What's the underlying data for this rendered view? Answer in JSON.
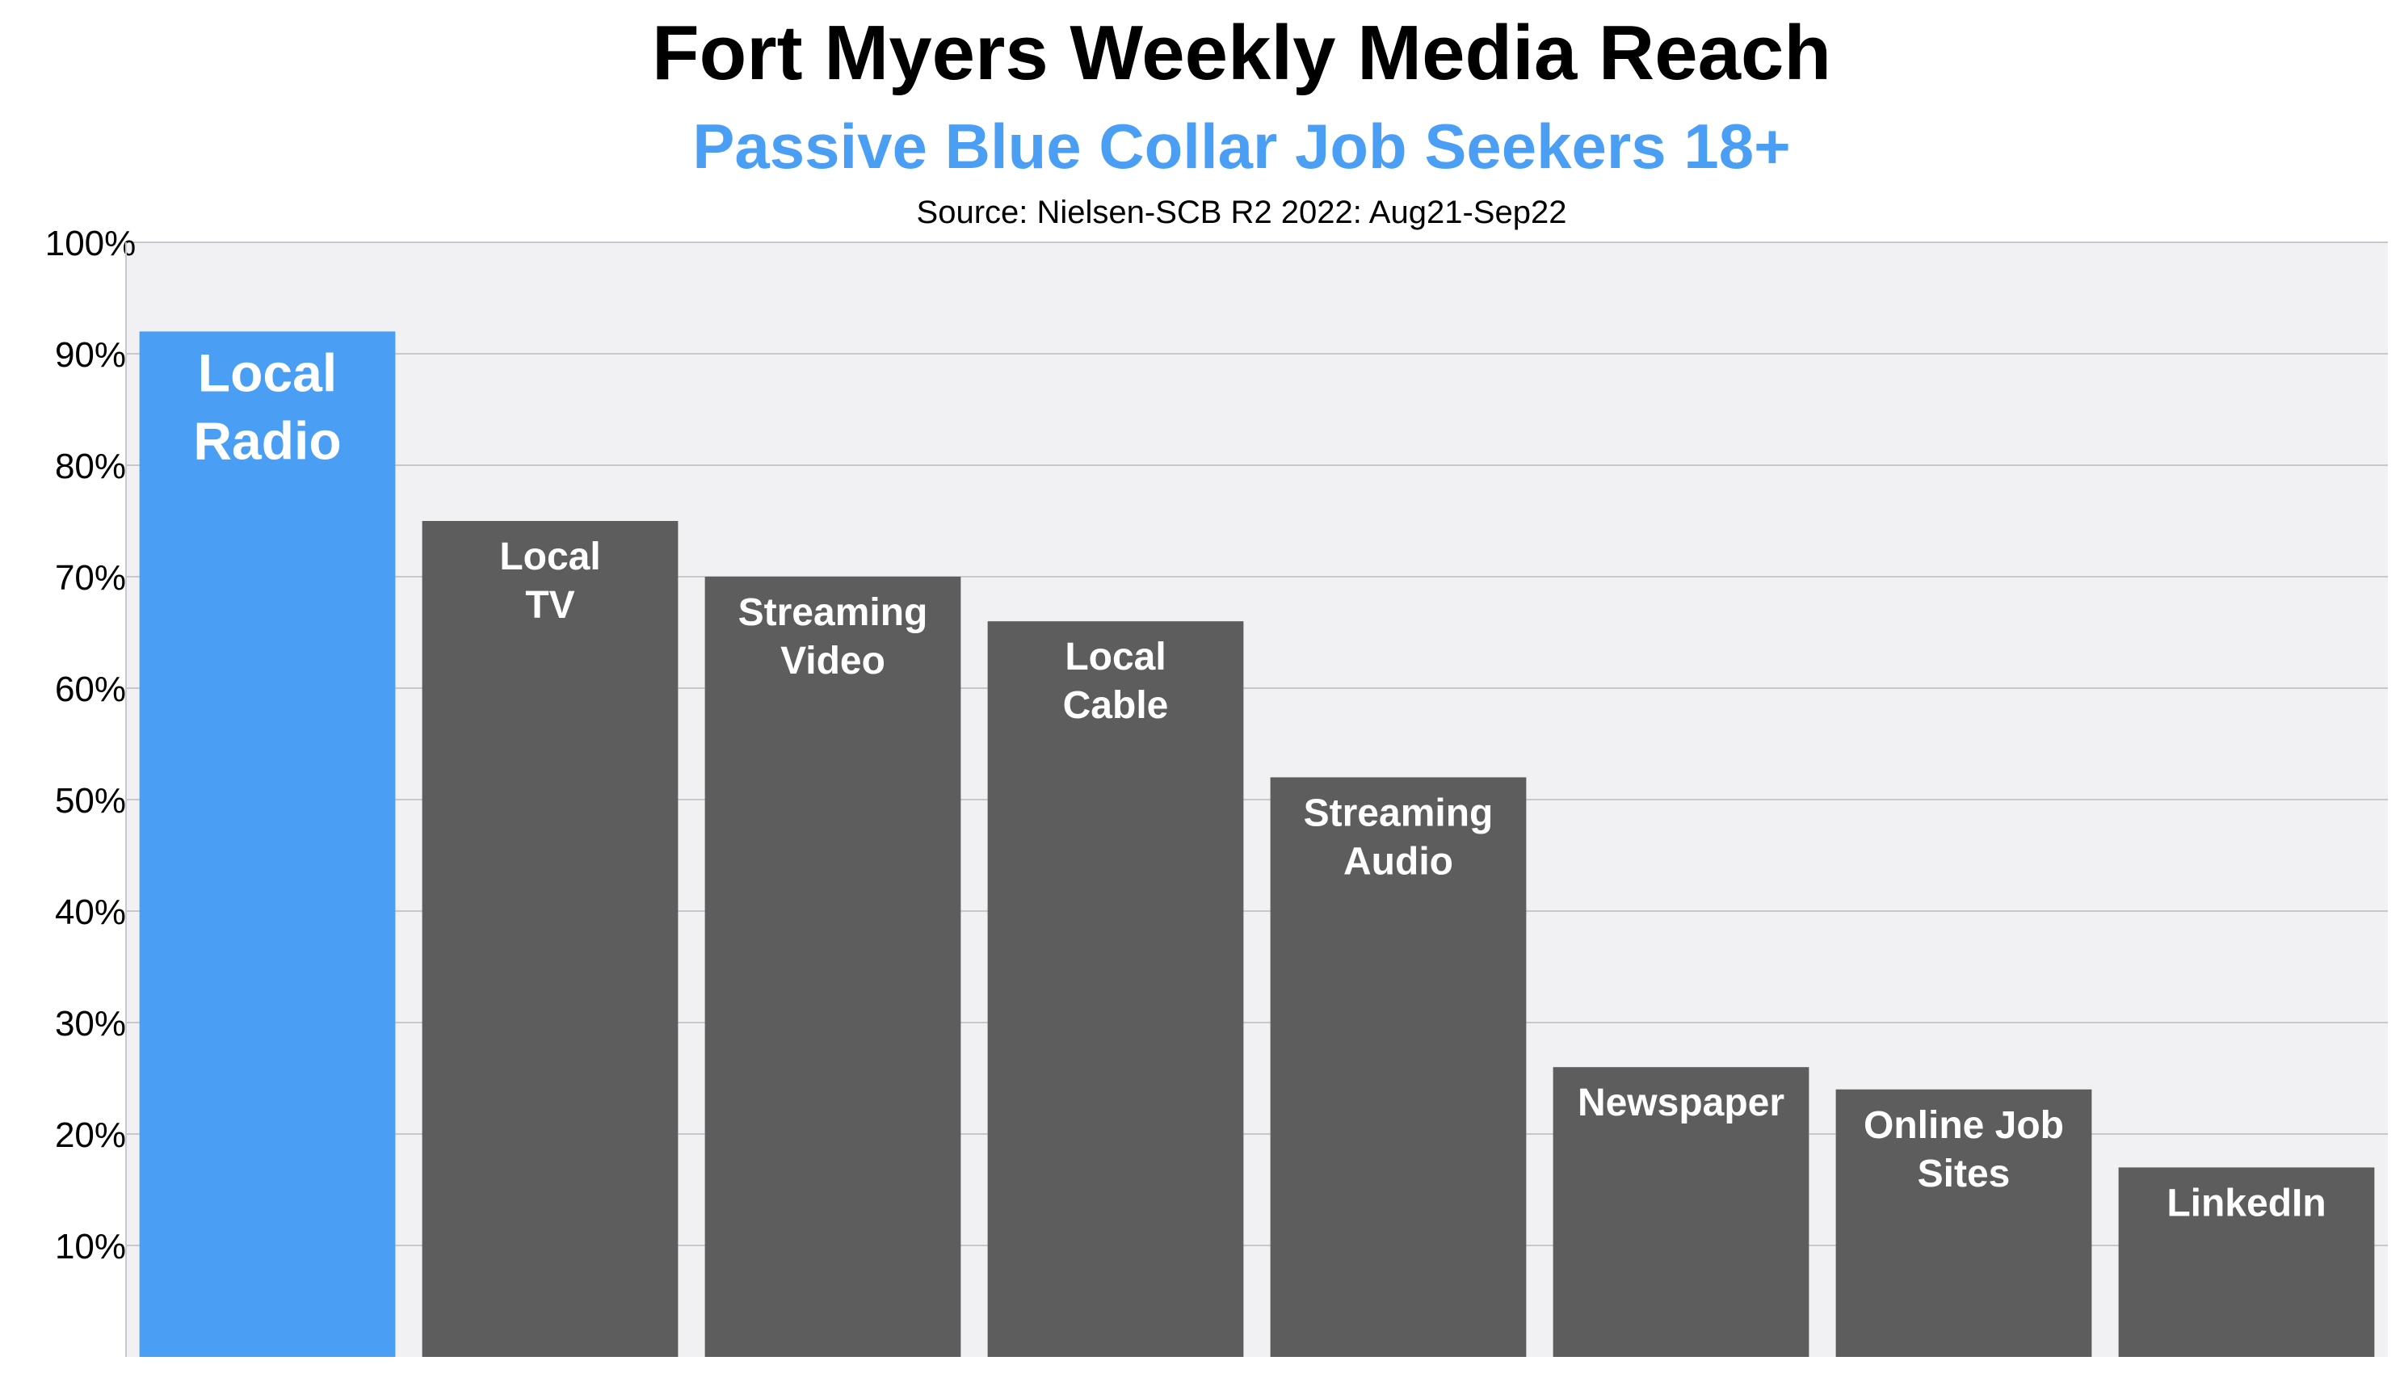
{
  "chart_data": {
    "type": "bar",
    "title": "Fort Myers Weekly Media Reach",
    "subtitle": "Passive Blue Collar Job Seekers 18+",
    "source": "Source: Nielsen-SCB R2 2022: Aug21-Sep22",
    "xlabel": "",
    "ylabel": "",
    "ylim": [
      0,
      100
    ],
    "yticks": [
      10,
      20,
      30,
      40,
      50,
      60,
      70,
      80,
      90,
      100
    ],
    "ytick_labels": [
      "10%",
      "20%",
      "30%",
      "40%",
      "50%",
      "60%",
      "70%",
      "80%",
      "90%",
      "100%"
    ],
    "grid": true,
    "legend": "none",
    "categories": [
      "Local Radio",
      "Local TV",
      "Streaming Video",
      "Local Cable",
      "Streaming Audio",
      "Newspaper",
      "Online Job Sites",
      "LinkedIn"
    ],
    "bar_labels": [
      [
        "Local",
        "Radio"
      ],
      [
        "Local",
        "TV"
      ],
      [
        "Streaming",
        "Video"
      ],
      [
        "Local",
        "Cable"
      ],
      [
        "Streaming",
        "Audio"
      ],
      [
        "Newspaper"
      ],
      [
        "Online Job",
        "Sites"
      ],
      [
        "LinkedIn"
      ]
    ],
    "values": [
      92,
      75,
      70,
      66,
      52,
      26,
      24,
      17
    ],
    "highlight_index": 0,
    "colors": {
      "highlight": "#4a9ff5",
      "bar": "#5d5d5d",
      "plot_background": "#f1f0f3",
      "grid": "#c8c8cc",
      "title": "#000000",
      "subtitle": "#4a9ff5",
      "label": "#ffffff"
    }
  }
}
